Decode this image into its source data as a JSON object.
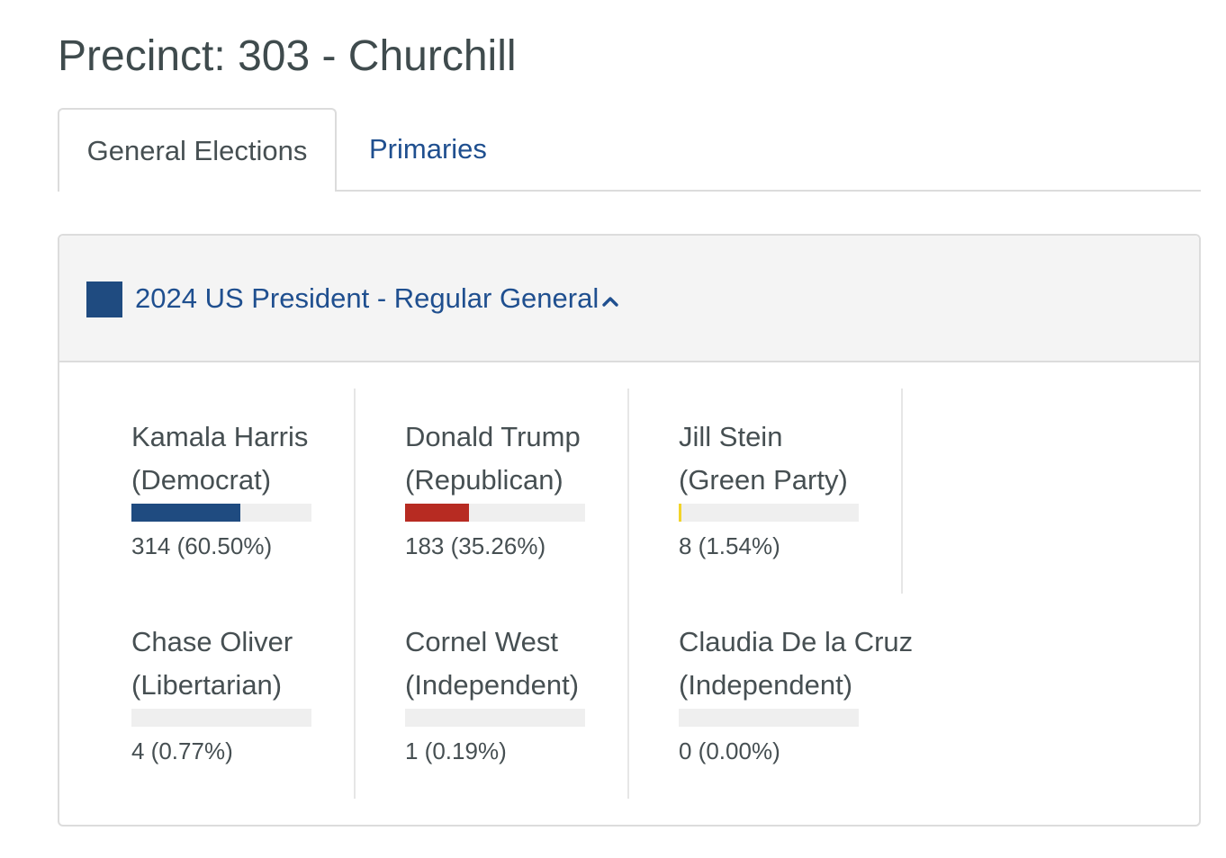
{
  "page": {
    "title": "Precinct: 303 - Churchill"
  },
  "tabs": [
    {
      "label": "General Elections",
      "active": true
    },
    {
      "label": "Primaries",
      "active": false
    }
  ],
  "race": {
    "title": "2024 US President - Regular General",
    "swatch_color": "#1f4b80",
    "expanded": true,
    "icon": "chevron-up-icon",
    "candidates": [
      {
        "name": "Kamala Harris",
        "party": "(Democrat)",
        "votes_text": "314 (60.50%)",
        "share": 0.605,
        "color": "#1f4b80"
      },
      {
        "name": "Donald Trump",
        "party": "(Republican)",
        "votes_text": "183 (35.26%)",
        "share": 0.3526,
        "color": "#b72b22"
      },
      {
        "name": "Jill Stein",
        "party": "(Green Party)",
        "votes_text": "8 (1.54%)",
        "share": 0.0154,
        "color": "#f2d42a"
      },
      {
        "name": "Chase Oliver",
        "party": "(Libertarian)",
        "votes_text": "4 (0.77%)",
        "share": 0.0077,
        "color": "#efefef"
      },
      {
        "name": "Cornel West",
        "party": "(Independent)",
        "votes_text": "1 (0.19%)",
        "share": 0.0019,
        "color": "#efefef"
      },
      {
        "name": "Claudia De la Cruz",
        "party": "(Independent)",
        "votes_text": "0 (0.00%)",
        "share": 0.0,
        "color": "#efefef"
      }
    ]
  }
}
